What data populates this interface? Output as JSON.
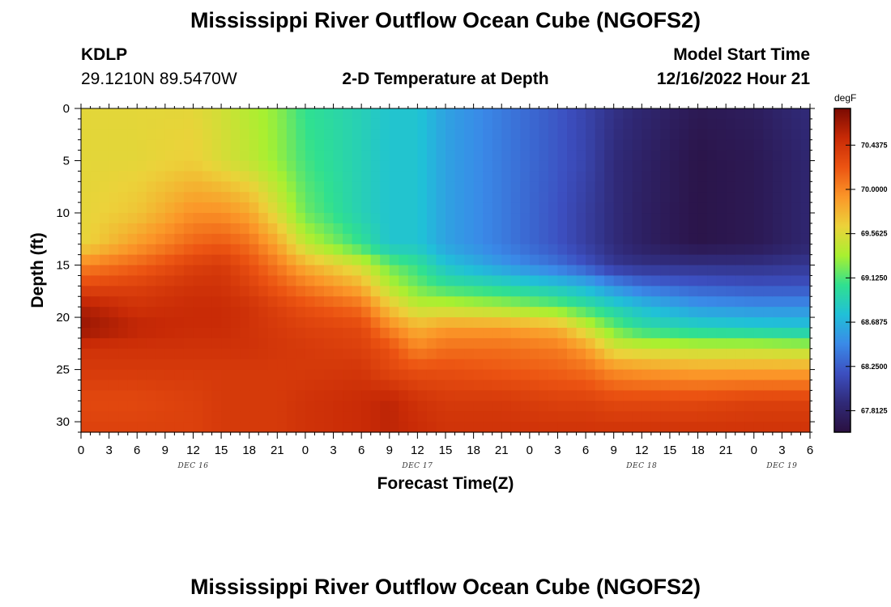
{
  "page": {
    "title": "Mississippi River Outflow Ocean Cube (NGOFS2)",
    "footer_title": "Mississippi River Outflow Ocean Cube (NGOFS2)",
    "station_id": "KDLP",
    "station_coords": "29.1210N  89.5470W",
    "subtitle": "2-D Temperature at Depth",
    "model_start_label": "Model Start Time",
    "model_start_value": "12/16/2022 Hour 21"
  },
  "chart_data": {
    "type": "heatmap",
    "title": "2-D Temperature at Depth",
    "xlabel": "Forecast Time(Z)",
    "ylabel": "Depth (ft)",
    "x_range_hours": [
      0,
      78
    ],
    "x_tick_labels": [
      "0",
      "3",
      "6",
      "9",
      "12",
      "15",
      "18",
      "21",
      "0",
      "3",
      "6",
      "9",
      "12",
      "15",
      "18",
      "21",
      "0",
      "3",
      "6",
      "9",
      "12",
      "15",
      "18",
      "21",
      "0",
      "3",
      "6"
    ],
    "date_labels": [
      {
        "label": "DEC 16",
        "hour": 12
      },
      {
        "label": "DEC 17",
        "hour": 36
      },
      {
        "label": "DEC 18",
        "hour": 60
      },
      {
        "label": "DEC 19",
        "hour": 75
      }
    ],
    "ylim": [
      0,
      31
    ],
    "y_ticks": [
      0,
      5,
      10,
      15,
      20,
      25,
      30
    ],
    "y_inverted": true,
    "colorbar": {
      "unit": "degF",
      "range": [
        67.6,
        70.8
      ],
      "ticks": [
        70.4375,
        70.0,
        69.5625,
        69.125,
        68.6875,
        68.25,
        67.8125
      ],
      "tick_labels": [
        "70.4375",
        "70.0000",
        "69.5625",
        "69.1250",
        "68.6875",
        "68.2500",
        "67.8125"
      ],
      "colors": [
        "#2a1040",
        "#302a78",
        "#3c4fc0",
        "#3a8ae8",
        "#20c0d8",
        "#30e090",
        "#a8f030",
        "#ecd23a",
        "#fb9628",
        "#ec5412",
        "#c82a06",
        "#7a0a02"
      ]
    },
    "time_hours": [
      0,
      6,
      12,
      15,
      18,
      21,
      24,
      30,
      33,
      36,
      39,
      45,
      51,
      54,
      57,
      60,
      66,
      72,
      78
    ],
    "depth_ft": [
      0,
      5,
      10,
      13,
      15,
      17,
      19,
      21,
      23,
      25,
      28,
      31
    ],
    "temperature_degF": [
      [
        69.6,
        69.6,
        69.6,
        69.52,
        69.4,
        69.28,
        69.05,
        68.9,
        68.8,
        68.8,
        68.6,
        68.4,
        68.22,
        68.1,
        67.95,
        67.85,
        67.7,
        67.75,
        67.9
      ],
      [
        69.6,
        69.6,
        69.65,
        69.55,
        69.45,
        69.3,
        69.1,
        68.9,
        68.8,
        68.8,
        68.6,
        68.4,
        68.22,
        68.1,
        67.9,
        67.8,
        67.65,
        67.7,
        67.85
      ],
      [
        69.6,
        69.7,
        69.95,
        69.95,
        69.85,
        69.55,
        69.2,
        68.9,
        68.8,
        68.8,
        68.6,
        68.4,
        68.2,
        68.05,
        67.9,
        67.78,
        67.65,
        67.7,
        67.85
      ],
      [
        69.6,
        69.9,
        70.15,
        70.2,
        70.1,
        69.85,
        69.45,
        69.05,
        68.8,
        68.8,
        68.6,
        68.4,
        68.2,
        68.05,
        67.9,
        67.78,
        67.65,
        67.7,
        67.85
      ],
      [
        70.0,
        70.15,
        70.35,
        70.4,
        70.25,
        70.05,
        69.8,
        69.5,
        69.2,
        69.05,
        68.8,
        68.55,
        68.35,
        68.2,
        68.0,
        67.95,
        67.95,
        67.95,
        68.0
      ],
      [
        70.3,
        70.35,
        70.45,
        70.45,
        70.35,
        70.2,
        70.05,
        69.8,
        69.4,
        69.2,
        69.05,
        68.95,
        68.8,
        68.7,
        68.5,
        68.35,
        68.25,
        68.2,
        68.2
      ],
      [
        70.6,
        70.45,
        70.5,
        70.5,
        70.45,
        70.35,
        70.25,
        70.1,
        69.7,
        69.45,
        69.45,
        69.35,
        69.2,
        69.05,
        68.9,
        68.75,
        68.55,
        68.5,
        68.5
      ],
      [
        70.7,
        70.55,
        70.5,
        70.5,
        70.45,
        70.4,
        70.35,
        70.3,
        70.0,
        69.8,
        69.9,
        69.9,
        69.8,
        69.5,
        69.2,
        69.0,
        68.9,
        68.85,
        68.8
      ],
      [
        70.45,
        70.45,
        70.45,
        70.45,
        70.45,
        70.42,
        70.4,
        70.35,
        70.25,
        70.0,
        70.1,
        70.1,
        70.05,
        69.9,
        69.55,
        69.5,
        69.45,
        69.45,
        69.4
      ],
      [
        70.4,
        70.4,
        70.4,
        70.4,
        70.4,
        70.4,
        70.4,
        70.42,
        70.3,
        70.25,
        70.25,
        70.2,
        70.15,
        70.1,
        69.95,
        69.9,
        69.85,
        69.85,
        69.85
      ],
      [
        70.3,
        70.3,
        70.35,
        70.4,
        70.4,
        70.4,
        70.45,
        70.5,
        70.55,
        70.45,
        70.4,
        70.4,
        70.35,
        70.35,
        70.3,
        70.3,
        70.3,
        70.35,
        70.35
      ],
      [
        70.35,
        70.35,
        70.35,
        70.4,
        70.4,
        70.4,
        70.45,
        70.5,
        70.55,
        70.5,
        70.45,
        70.45,
        70.45,
        70.45,
        70.45,
        70.45,
        70.45,
        70.45,
        70.45
      ]
    ]
  }
}
